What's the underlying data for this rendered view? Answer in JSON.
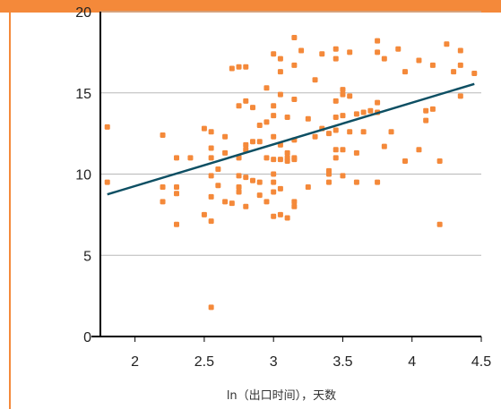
{
  "chart_data": {
    "type": "scatter",
    "title": "",
    "xlabel": "ln（出口时间），天数",
    "ylabel": "",
    "xlim": [
      1.75,
      4.5
    ],
    "ylim": [
      0,
      20
    ],
    "x_ticks": [
      "2",
      "2.5",
      "3",
      "3.5",
      "4",
      "4.5"
    ],
    "y_ticks": [
      "0",
      "5",
      "10",
      "15",
      "20"
    ],
    "grid": "horizontal",
    "marker_color": "#f4893a",
    "trend_color": "#0d4f63",
    "accent_color": "#f4893a",
    "trendline": {
      "x": [
        1.8,
        4.45
      ],
      "y": [
        8.75,
        15.55
      ]
    },
    "points": [
      {
        "x": 1.8,
        "y": 12.9
      },
      {
        "x": 1.8,
        "y": 9.5
      },
      {
        "x": 2.2,
        "y": 12.4
      },
      {
        "x": 2.2,
        "y": 9.2
      },
      {
        "x": 2.2,
        "y": 8.3
      },
      {
        "x": 2.3,
        "y": 11.0
      },
      {
        "x": 2.3,
        "y": 9.2
      },
      {
        "x": 2.3,
        "y": 8.8
      },
      {
        "x": 2.3,
        "y": 6.9
      },
      {
        "x": 2.4,
        "y": 11.0
      },
      {
        "x": 2.5,
        "y": 12.8
      },
      {
        "x": 2.5,
        "y": 7.5
      },
      {
        "x": 2.55,
        "y": 12.6
      },
      {
        "x": 2.55,
        "y": 11.6
      },
      {
        "x": 2.55,
        "y": 11.0
      },
      {
        "x": 2.55,
        "y": 9.9
      },
      {
        "x": 2.55,
        "y": 8.6
      },
      {
        "x": 2.55,
        "y": 7.1
      },
      {
        "x": 2.55,
        "y": 1.8
      },
      {
        "x": 2.6,
        "y": 10.3
      },
      {
        "x": 2.6,
        "y": 9.3
      },
      {
        "x": 2.65,
        "y": 12.3
      },
      {
        "x": 2.65,
        "y": 11.3
      },
      {
        "x": 2.65,
        "y": 8.3
      },
      {
        "x": 2.7,
        "y": 16.5
      },
      {
        "x": 2.7,
        "y": 8.2
      },
      {
        "x": 2.75,
        "y": 16.6
      },
      {
        "x": 2.75,
        "y": 14.2
      },
      {
        "x": 2.75,
        "y": 11.0
      },
      {
        "x": 2.75,
        "y": 9.9
      },
      {
        "x": 2.75,
        "y": 9.2
      },
      {
        "x": 2.75,
        "y": 8.9
      },
      {
        "x": 2.8,
        "y": 16.6
      },
      {
        "x": 2.8,
        "y": 14.5
      },
      {
        "x": 2.8,
        "y": 11.8
      },
      {
        "x": 2.8,
        "y": 11.5
      },
      {
        "x": 2.8,
        "y": 9.8
      },
      {
        "x": 2.8,
        "y": 8.0
      },
      {
        "x": 2.85,
        "y": 14.1
      },
      {
        "x": 2.85,
        "y": 12.0
      },
      {
        "x": 2.85,
        "y": 9.6
      },
      {
        "x": 2.9,
        "y": 13.0
      },
      {
        "x": 2.9,
        "y": 12.0
      },
      {
        "x": 2.9,
        "y": 9.5
      },
      {
        "x": 2.9,
        "y": 8.7
      },
      {
        "x": 2.95,
        "y": 15.3
      },
      {
        "x": 2.95,
        "y": 13.2
      },
      {
        "x": 2.95,
        "y": 11.0
      },
      {
        "x": 2.95,
        "y": 8.3
      },
      {
        "x": 3.0,
        "y": 17.4
      },
      {
        "x": 3.0,
        "y": 14.2
      },
      {
        "x": 3.0,
        "y": 13.6
      },
      {
        "x": 3.0,
        "y": 12.3
      },
      {
        "x": 3.0,
        "y": 10.9
      },
      {
        "x": 3.0,
        "y": 10.0
      },
      {
        "x": 3.0,
        "y": 9.5
      },
      {
        "x": 3.0,
        "y": 8.9
      },
      {
        "x": 3.0,
        "y": 7.4
      },
      {
        "x": 3.05,
        "y": 17.1
      },
      {
        "x": 3.05,
        "y": 16.3
      },
      {
        "x": 3.05,
        "y": 14.9
      },
      {
        "x": 3.05,
        "y": 11.8
      },
      {
        "x": 3.05,
        "y": 10.9
      },
      {
        "x": 3.05,
        "y": 9.1
      },
      {
        "x": 3.05,
        "y": 7.5
      },
      {
        "x": 3.1,
        "y": 13.5
      },
      {
        "x": 3.1,
        "y": 11.3
      },
      {
        "x": 3.1,
        "y": 11.0
      },
      {
        "x": 3.1,
        "y": 10.8
      },
      {
        "x": 3.1,
        "y": 7.3
      },
      {
        "x": 3.15,
        "y": 18.4
      },
      {
        "x": 3.15,
        "y": 16.7
      },
      {
        "x": 3.15,
        "y": 14.6
      },
      {
        "x": 3.15,
        "y": 12.1
      },
      {
        "x": 3.15,
        "y": 11.0
      },
      {
        "x": 3.15,
        "y": 10.9
      },
      {
        "x": 3.15,
        "y": 8.3
      },
      {
        "x": 3.15,
        "y": 8.0
      },
      {
        "x": 3.2,
        "y": 17.6
      },
      {
        "x": 3.25,
        "y": 13.4
      },
      {
        "x": 3.25,
        "y": 9.2
      },
      {
        "x": 3.3,
        "y": 15.8
      },
      {
        "x": 3.3,
        "y": 12.3
      },
      {
        "x": 3.35,
        "y": 17.4
      },
      {
        "x": 3.35,
        "y": 12.8
      },
      {
        "x": 3.4,
        "y": 12.5
      },
      {
        "x": 3.4,
        "y": 10.2
      },
      {
        "x": 3.4,
        "y": 10.0
      },
      {
        "x": 3.4,
        "y": 9.5
      },
      {
        "x": 3.45,
        "y": 17.7
      },
      {
        "x": 3.45,
        "y": 17.1
      },
      {
        "x": 3.45,
        "y": 14.5
      },
      {
        "x": 3.45,
        "y": 13.5
      },
      {
        "x": 3.45,
        "y": 12.7
      },
      {
        "x": 3.45,
        "y": 11.5
      },
      {
        "x": 3.45,
        "y": 11.0
      },
      {
        "x": 3.5,
        "y": 15.2
      },
      {
        "x": 3.5,
        "y": 14.9
      },
      {
        "x": 3.5,
        "y": 13.6
      },
      {
        "x": 3.5,
        "y": 11.5
      },
      {
        "x": 3.5,
        "y": 9.9
      },
      {
        "x": 3.55,
        "y": 17.5
      },
      {
        "x": 3.55,
        "y": 14.8
      },
      {
        "x": 3.55,
        "y": 12.6
      },
      {
        "x": 3.6,
        "y": 13.7
      },
      {
        "x": 3.6,
        "y": 11.3
      },
      {
        "x": 3.6,
        "y": 9.5
      },
      {
        "x": 3.65,
        "y": 13.8
      },
      {
        "x": 3.65,
        "y": 12.6
      },
      {
        "x": 3.7,
        "y": 13.9
      },
      {
        "x": 3.75,
        "y": 18.2
      },
      {
        "x": 3.75,
        "y": 17.5
      },
      {
        "x": 3.75,
        "y": 14.4
      },
      {
        "x": 3.75,
        "y": 13.8
      },
      {
        "x": 3.75,
        "y": 9.5
      },
      {
        "x": 3.8,
        "y": 17.1
      },
      {
        "x": 3.8,
        "y": 11.7
      },
      {
        "x": 3.85,
        "y": 12.6
      },
      {
        "x": 3.9,
        "y": 17.7
      },
      {
        "x": 3.95,
        "y": 16.3
      },
      {
        "x": 3.95,
        "y": 10.8
      },
      {
        "x": 4.05,
        "y": 17.0
      },
      {
        "x": 4.05,
        "y": 11.5
      },
      {
        "x": 4.1,
        "y": 13.9
      },
      {
        "x": 4.1,
        "y": 13.3
      },
      {
        "x": 4.15,
        "y": 16.7
      },
      {
        "x": 4.15,
        "y": 14.0
      },
      {
        "x": 4.2,
        "y": 10.8
      },
      {
        "x": 4.2,
        "y": 6.9
      },
      {
        "x": 4.25,
        "y": 18.0
      },
      {
        "x": 4.3,
        "y": 16.3
      },
      {
        "x": 4.35,
        "y": 17.6
      },
      {
        "x": 4.35,
        "y": 16.7
      },
      {
        "x": 4.35,
        "y": 14.8
      },
      {
        "x": 4.45,
        "y": 16.2
      }
    ]
  }
}
